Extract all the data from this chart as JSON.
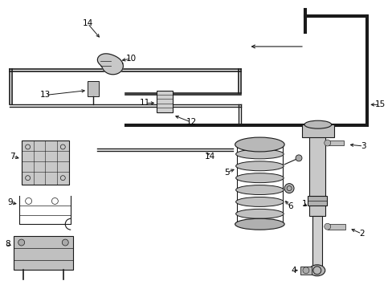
{
  "bg_color": "#ffffff",
  "line_color": "#1a1a1a",
  "text_color": "#000000",
  "lw_main": 1.0,
  "lw_thin": 0.6,
  "fontsize": 7.5
}
